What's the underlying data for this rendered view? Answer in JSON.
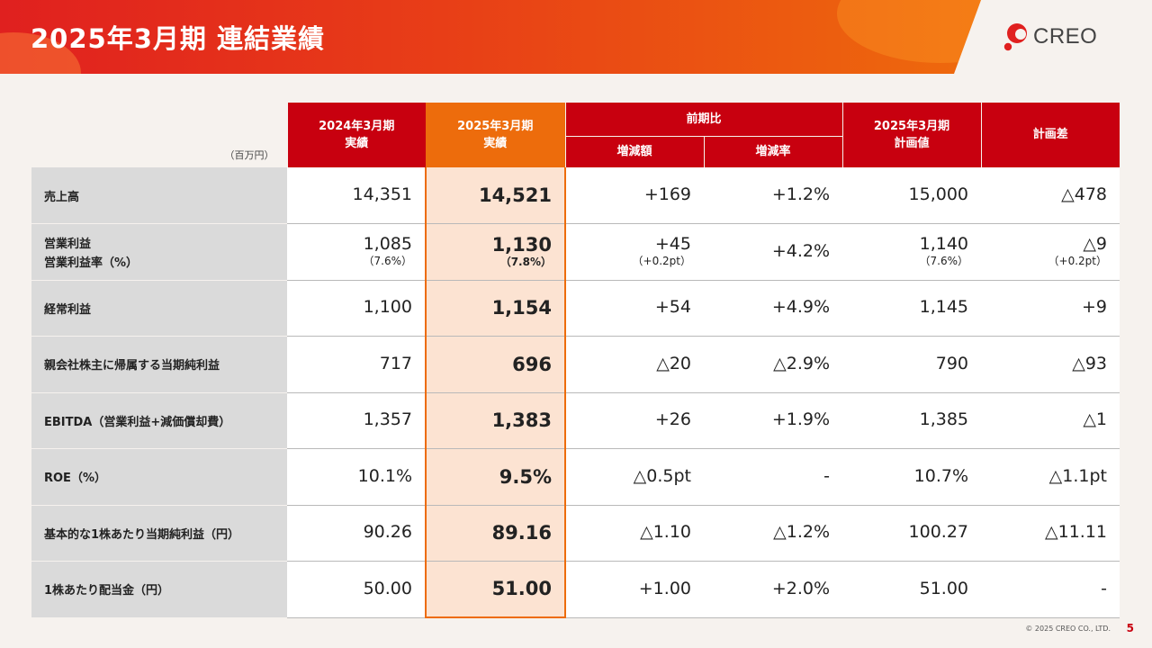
{
  "header": {
    "title": "2025年3月期 連結業績"
  },
  "logo": {
    "text": "CREO"
  },
  "table": {
    "unit": "（百万円）",
    "headers": {
      "prev": "2024年3月期\n実績",
      "cur": "2025年3月期\n実績",
      "yoy": "前期比",
      "yoy_amount": "増減額",
      "yoy_rate": "増減率",
      "plan": "2025年3月期\n計画値",
      "plan_diff": "計画差"
    },
    "rows": [
      {
        "label": "売上高",
        "label2": "",
        "prev": "14,351",
        "prev_sub": "",
        "cur": "14,521",
        "cur_sub": "",
        "amt": "+169",
        "amt_sub": "",
        "rate": "+1.2%",
        "plan": "15,000",
        "plan_sub": "",
        "diff": "△478",
        "diff_sub": ""
      },
      {
        "label": "営業利益",
        "label2": "営業利益率（%）",
        "prev": "1,085",
        "prev_sub": "（7.6%）",
        "cur": "1,130",
        "cur_sub": "（7.8%）",
        "amt": "+45",
        "amt_sub": "（+0.2pt）",
        "rate": "+4.2%",
        "plan": "1,140",
        "plan_sub": "（7.6%）",
        "diff": "△9",
        "diff_sub": "（+0.2pt）"
      },
      {
        "label": "経常利益",
        "label2": "",
        "prev": "1,100",
        "prev_sub": "",
        "cur": "1,154",
        "cur_sub": "",
        "amt": "+54",
        "amt_sub": "",
        "rate": "+4.9%",
        "plan": "1,145",
        "plan_sub": "",
        "diff": "+9",
        "diff_sub": ""
      },
      {
        "label": "親会社株主に帰属する当期純利益",
        "label2": "",
        "prev": "717",
        "prev_sub": "",
        "cur": "696",
        "cur_sub": "",
        "amt": "△20",
        "amt_sub": "",
        "rate": "△2.9%",
        "plan": "790",
        "plan_sub": "",
        "diff": "△93",
        "diff_sub": ""
      },
      {
        "label": "EBITDA（営業利益+減価償却費）",
        "label2": "",
        "prev": "1,357",
        "prev_sub": "",
        "cur": "1,383",
        "cur_sub": "",
        "amt": "+26",
        "amt_sub": "",
        "rate": "+1.9%",
        "plan": "1,385",
        "plan_sub": "",
        "diff": "△1",
        "diff_sub": ""
      },
      {
        "label": "ROE（%）",
        "label2": "",
        "prev": "10.1%",
        "prev_sub": "",
        "cur": "9.5%",
        "cur_sub": "",
        "amt": "△0.5pt",
        "amt_sub": "",
        "rate": "-",
        "plan": "10.7%",
        "plan_sub": "",
        "diff": "△1.1pt",
        "diff_sub": ""
      },
      {
        "label": "基本的な1株あたり当期純利益（円）",
        "label2": "",
        "prev": "90.26",
        "prev_sub": "",
        "cur": "89.16",
        "cur_sub": "",
        "amt": "△1.10",
        "amt_sub": "",
        "rate": "△1.2%",
        "plan": "100.27",
        "plan_sub": "",
        "diff": "△11.11",
        "diff_sub": ""
      },
      {
        "label": "1株あたり配当金（円）",
        "label2": "",
        "prev": "50.00",
        "prev_sub": "",
        "cur": "51.00",
        "cur_sub": "",
        "amt": "+1.00",
        "amt_sub": "",
        "rate": "+2.0%",
        "plan": "51.00",
        "plan_sub": "",
        "diff": "-",
        "diff_sub": ""
      }
    ]
  },
  "footer": {
    "copyright": "© 2025 CREO CO., LTD.",
    "page": "5"
  },
  "colors": {
    "brand_red": "#c8000f",
    "accent_orange": "#ed6c0c",
    "highlight": "#fce3d2"
  }
}
